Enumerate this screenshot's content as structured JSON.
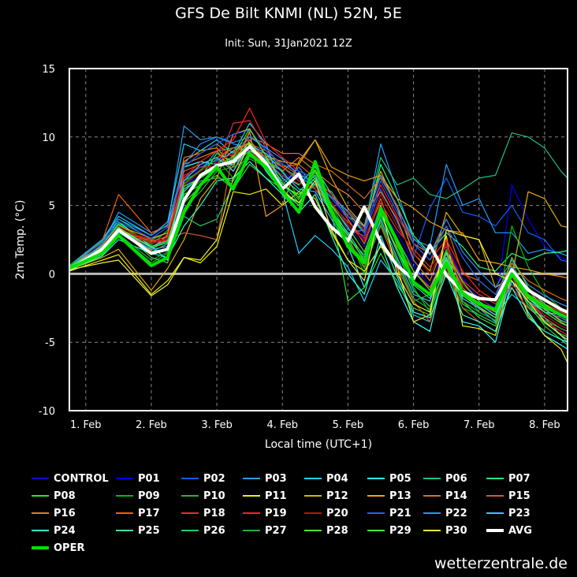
{
  "title": "GFS De Bilt KNMI (NL) 52N, 5E",
  "subtitle": "Init: Sun, 31Jan2021 12Z",
  "watermark": "wetterzentrale.de",
  "chart_data": {
    "type": "line",
    "xlabel": "Local time (UTC+1)",
    "ylabel": "2m Temp. (°C)",
    "ylim": [
      -10,
      15
    ],
    "yticks": [
      -10,
      -5,
      0,
      5,
      10,
      15
    ],
    "xlim": [
      0.75,
      8.35
    ],
    "xticks": [
      1,
      2,
      3,
      4,
      5,
      6,
      7,
      8
    ],
    "xtick_labels": [
      "1. Feb",
      "2. Feb",
      "3. Feb",
      "4. Feb",
      "5. Feb",
      "6. Feb",
      "7. Feb",
      "8. Feb"
    ],
    "grid": true,
    "legend_position": "bottom",
    "x": [
      0.75,
      1.25,
      1.5,
      2.0,
      2.25,
      2.5,
      2.75,
      3.0,
      3.25,
      3.5,
      3.75,
      4.0,
      4.25,
      4.5,
      4.75,
      5.0,
      5.25,
      5.5,
      5.75,
      6.0,
      6.25,
      6.5,
      6.75,
      7.0,
      7.25,
      7.5,
      7.75,
      8.0,
      8.25,
      8.35
    ],
    "series": [
      {
        "name": "CONTROL",
        "color": "#1010c0",
        "values": [
          0.4,
          1.5,
          3.2,
          1.8,
          2.5,
          6.5,
          7.2,
          7.5,
          8.5,
          10.2,
          9.0,
          7.5,
          6.5,
          7.2,
          5.0,
          3.5,
          2.0,
          5.0,
          2.5,
          0.5,
          -1.2,
          1.5,
          -0.8,
          -2.0,
          -3.2,
          -0.5,
          -2.2,
          -3.0,
          -3.8,
          -4.0
        ]
      },
      {
        "name": "P01",
        "color": "#0000ff",
        "values": [
          0.3,
          1.8,
          3.0,
          1.5,
          2.2,
          6.0,
          8.0,
          8.2,
          9.0,
          9.5,
          8.8,
          7.0,
          7.0,
          6.8,
          5.5,
          4.0,
          2.5,
          4.5,
          3.0,
          0.8,
          -1.0,
          2.2,
          -0.3,
          -1.8,
          -2.5,
          6.5,
          4.0,
          2.0,
          1.2,
          1.0
        ]
      },
      {
        "name": "P02",
        "color": "#1060ff",
        "values": [
          0.5,
          1.9,
          3.3,
          1.9,
          2.8,
          7.0,
          7.8,
          8.3,
          9.2,
          9.8,
          8.2,
          6.8,
          7.4,
          6.5,
          5.2,
          3.2,
          2.8,
          6.2,
          3.8,
          1.2,
          4.8,
          7.0,
          4.5,
          4.2,
          3.5,
          5.0,
          3.0,
          2.5,
          1.0,
          0.9
        ]
      },
      {
        "name": "P03",
        "color": "#20a0ff",
        "values": [
          0.2,
          2.2,
          4.5,
          3.0,
          3.5,
          10.8,
          9.8,
          10.0,
          9.5,
          9.2,
          8.5,
          6.5,
          7.8,
          6.2,
          4.5,
          3.0,
          3.2,
          9.5,
          6.0,
          2.5,
          2.0,
          8.0,
          5.0,
          5.5,
          3.0,
          3.0,
          1.5,
          1.8,
          1.5,
          1.3
        ]
      },
      {
        "name": "P04",
        "color": "#20d0ff",
        "values": [
          0.6,
          2.5,
          4.2,
          2.8,
          3.8,
          9.5,
          9.0,
          9.8,
          8.8,
          11.0,
          9.5,
          6.0,
          1.5,
          2.8,
          1.8,
          0.5,
          -2.0,
          1.0,
          -0.5,
          -3.0,
          -3.5,
          0.5,
          -1.5,
          -2.2,
          -3.0,
          -1.5,
          -2.5,
          -3.2,
          -4.5,
          -5.0
        ]
      },
      {
        "name": "P05",
        "color": "#30ffff",
        "values": [
          0.4,
          1.6,
          3.8,
          2.0,
          1.0,
          7.8,
          8.2,
          8.0,
          9.0,
          9.6,
          7.5,
          6.0,
          5.0,
          8.0,
          4.8,
          2.0,
          -1.0,
          2.2,
          -1.0,
          -3.5,
          -4.2,
          1.0,
          -3.5,
          -3.8,
          -5.0,
          -0.5,
          -2.8,
          -4.5,
          -5.2,
          -5.5
        ]
      },
      {
        "name": "P06",
        "color": "#20c080",
        "values": [
          0.3,
          2.0,
          4.0,
          2.5,
          3.0,
          6.8,
          7.5,
          9.0,
          9.2,
          9.0,
          8.8,
          7.8,
          7.0,
          6.5,
          6.0,
          4.2,
          3.5,
          8.5,
          6.5,
          7.0,
          5.8,
          5.5,
          6.2,
          7.0,
          7.2,
          10.3,
          10.0,
          9.2,
          7.5,
          7.0
        ]
      },
      {
        "name": "P07",
        "color": "#20ff80",
        "values": [
          0.5,
          2.1,
          3.6,
          2.2,
          2.6,
          6.2,
          7.0,
          8.8,
          8.2,
          9.2,
          8.0,
          7.2,
          6.5,
          7.8,
          5.8,
          4.5,
          3.0,
          8.0,
          5.5,
          2.8,
          1.5,
          3.0,
          2.0,
          0.5,
          0.2,
          1.5,
          1.0,
          1.5,
          1.6,
          1.7
        ]
      },
      {
        "name": "P08",
        "color": "#30e030",
        "values": [
          0.4,
          1.7,
          3.4,
          1.2,
          0.8,
          5.8,
          6.5,
          7.2,
          6.2,
          8.0,
          7.0,
          6.2,
          5.0,
          8.2,
          4.5,
          -2.0,
          -1.0,
          1.5,
          -0.8,
          -2.5,
          -3.0,
          1.2,
          -2.0,
          -3.2,
          -3.8,
          -0.2,
          -2.2,
          -3.8,
          -4.8,
          -5.2
        ]
      },
      {
        "name": "P09",
        "color": "#00c000",
        "values": [
          0.6,
          2.3,
          3.7,
          2.1,
          3.2,
          6.6,
          7.6,
          8.4,
          7.0,
          9.0,
          8.3,
          7.6,
          5.5,
          7.5,
          5.0,
          2.8,
          0.0,
          4.2,
          1.8,
          -1.0,
          -2.8,
          0.2,
          -2.5,
          -3.0,
          -3.6,
          3.5,
          0.5,
          -1.5,
          -2.5,
          -2.8
        ]
      },
      {
        "name": "P10",
        "color": "#30b030",
        "values": [
          0.3,
          1.4,
          2.8,
          0.8,
          1.5,
          5.5,
          6.8,
          7.0,
          6.8,
          8.6,
          7.8,
          6.4,
          5.8,
          7.0,
          4.2,
          2.2,
          1.0,
          3.8,
          0.8,
          -2.0,
          -1.5,
          1.8,
          -1.2,
          -2.8,
          -3.4,
          0.8,
          -1.6,
          -2.8,
          -3.2,
          -3.4
        ]
      },
      {
        "name": "P11",
        "color": "#f0f000",
        "values": [
          0.2,
          1.0,
          1.4,
          -1.5,
          -0.5,
          1.2,
          0.8,
          2.0,
          6.0,
          5.8,
          6.2,
          5.0,
          6.0,
          5.5,
          3.0,
          1.0,
          0.2,
          2.0,
          0.5,
          -3.5,
          -3.0,
          2.8,
          -3.8,
          -4.0,
          -4.5,
          0.0,
          -3.0,
          -4.5,
          -5.5,
          -6.5
        ]
      },
      {
        "name": "P12",
        "color": "#e0b000",
        "values": [
          0.3,
          1.2,
          1.8,
          -1.2,
          0.4,
          2.5,
          5.5,
          7.0,
          10.2,
          10.6,
          8.6,
          8.2,
          8.0,
          9.8,
          7.0,
          4.8,
          3.5,
          7.5,
          4.8,
          1.5,
          0.2,
          4.5,
          2.8,
          2.5,
          -1.0,
          -0.2,
          6.0,
          5.5,
          3.5,
          3.4
        ]
      },
      {
        "name": "P13",
        "color": "#f0a010",
        "values": [
          0.5,
          1.9,
          3.5,
          2.6,
          3.0,
          8.2,
          9.0,
          9.2,
          7.8,
          10.4,
          4.2,
          5.0,
          8.2,
          9.8,
          7.8,
          7.2,
          6.8,
          7.2,
          5.5,
          4.8,
          3.8,
          3.2,
          3.0,
          1.0,
          0.8,
          0.5,
          0.3,
          0.0,
          -0.2,
          -0.3
        ]
      },
      {
        "name": "P14",
        "color": "#e07010",
        "values": [
          0.4,
          1.8,
          3.1,
          2.4,
          2.7,
          8.5,
          8.8,
          9.5,
          8.5,
          10.0,
          9.5,
          8.8,
          8.8,
          8.0,
          7.5,
          6.5,
          5.5,
          7.0,
          5.0,
          2.2,
          1.5,
          3.5,
          0.0,
          -0.5,
          -1.5,
          0.8,
          -0.5,
          -1.2,
          -1.8,
          -2.0
        ]
      },
      {
        "name": "P15",
        "color": "#d06020",
        "values": [
          0.3,
          2.0,
          3.3,
          2.0,
          2.5,
          3.0,
          2.8,
          2.5,
          9.0,
          9.5,
          9.0,
          8.0,
          7.2,
          6.8,
          4.8,
          2.5,
          0.5,
          3.5,
          0.5,
          -2.0,
          -3.5,
          0.5,
          -2.5,
          -3.5,
          -4.2,
          0.5,
          -2.0,
          -3.2,
          -4.0,
          -4.2
        ]
      },
      {
        "name": "P16",
        "color": "#e08030",
        "values": [
          0.5,
          2.1,
          3.4,
          1.7,
          2.9,
          8.0,
          8.5,
          9.0,
          7.5,
          9.8,
          8.2,
          7.5,
          8.5,
          7.5,
          6.5,
          5.8,
          4.5,
          6.0,
          4.0,
          1.0,
          -0.5,
          2.5,
          -1.8,
          -2.5,
          -3.2,
          0.5,
          -1.2,
          -2.5,
          -3.5,
          -3.8
        ]
      },
      {
        "name": "P17",
        "color": "#f06010",
        "values": [
          0.4,
          2.4,
          5.8,
          3.0,
          3.5,
          7.5,
          8.0,
          8.5,
          9.2,
          9.5,
          8.5,
          7.8,
          8.0,
          7.0,
          5.8,
          4.0,
          2.2,
          5.5,
          2.0,
          0.2,
          -1.0,
          1.5,
          -1.0,
          -2.2,
          -2.8,
          0.0,
          -1.5,
          -2.2,
          -2.8,
          -3.0
        ]
      },
      {
        "name": "P18",
        "color": "#e03030",
        "values": [
          0.3,
          1.6,
          3.0,
          2.3,
          2.8,
          7.2,
          7.8,
          7.8,
          11.0,
          11.2,
          9.2,
          7.8,
          6.8,
          6.2,
          5.0,
          3.8,
          2.6,
          5.2,
          3.2,
          1.8,
          0.5,
          2.0,
          -0.5,
          -1.5,
          -2.2,
          -0.8,
          -1.8,
          -2.8,
          -3.2,
          -3.5
        ]
      },
      {
        "name": "P19",
        "color": "#ff2020",
        "values": [
          0.5,
          1.9,
          3.2,
          2.5,
          2.4,
          7.0,
          8.2,
          9.0,
          9.8,
          12.1,
          9.6,
          8.5,
          7.5,
          7.0,
          5.8,
          4.5,
          3.2,
          6.5,
          4.2,
          2.2,
          1.0,
          2.5,
          0.2,
          -1.2,
          -2.0,
          -1.0,
          -2.5,
          -3.5,
          -4.2,
          -4.5
        ]
      },
      {
        "name": "P20",
        "color": "#c01010",
        "values": [
          0.4,
          2.0,
          3.5,
          2.2,
          2.6,
          6.5,
          7.5,
          8.2,
          8.8,
          9.0,
          8.0,
          7.2,
          6.6,
          6.4,
          5.2,
          3.6,
          2.4,
          5.8,
          3.5,
          1.5,
          0.0,
          2.2,
          -0.8,
          -1.8,
          -2.6,
          -0.2,
          -2.0,
          -3.0,
          -3.8,
          -4.0
        ]
      },
      {
        "name": "P21",
        "color": "#2060ff",
        "values": [
          0.3,
          2.2,
          3.8,
          2.6,
          3.4,
          7.8,
          8.8,
          9.5,
          10.2,
          10.5,
          9.0,
          8.0,
          7.5,
          7.0,
          5.5,
          4.2,
          3.0,
          6.8,
          4.5,
          2.2,
          1.0,
          3.5,
          1.2,
          -0.5,
          -1.5,
          0.5,
          -1.2,
          -2.2,
          -3.2,
          -3.5
        ]
      },
      {
        "name": "P22",
        "color": "#3090ff",
        "values": [
          0.5,
          2.4,
          4.0,
          2.8,
          3.6,
          8.0,
          9.5,
          10.0,
          9.6,
          10.0,
          9.2,
          8.4,
          7.2,
          6.8,
          5.6,
          4.6,
          3.4,
          7.2,
          4.8,
          2.6,
          1.4,
          4.0,
          1.6,
          0.2,
          -1.0,
          1.0,
          -0.8,
          -1.6,
          -2.2,
          -2.4
        ]
      },
      {
        "name": "P23",
        "color": "#40c0ff",
        "values": [
          0.4,
          1.5,
          3.0,
          1.8,
          2.0,
          6.8,
          8.0,
          8.5,
          7.5,
          9.4,
          8.8,
          7.4,
          6.2,
          6.0,
          4.0,
          2.0,
          0.8,
          4.0,
          1.2,
          -1.5,
          -2.0,
          1.5,
          -1.8,
          -2.5,
          -3.5,
          -0.5,
          -2.0,
          -2.8,
          -3.0,
          -3.2
        ]
      },
      {
        "name": "P24",
        "color": "#30ffd0",
        "values": [
          0.3,
          1.3,
          2.5,
          1.5,
          1.2,
          3.5,
          5.0,
          6.8,
          7.0,
          8.2,
          7.0,
          5.8,
          4.5,
          5.8,
          2.8,
          0.0,
          -1.5,
          2.8,
          -0.2,
          -2.8,
          -3.2,
          0.0,
          -3.0,
          -3.5,
          -4.2,
          -1.0,
          -3.2,
          -4.2,
          -4.8,
          -5.0
        ]
      },
      {
        "name": "P25",
        "color": "#40e0a0",
        "values": [
          0.5,
          2.0,
          3.2,
          2.0,
          2.4,
          6.0,
          7.2,
          8.0,
          8.0,
          9.0,
          8.4,
          7.0,
          6.0,
          7.2,
          4.6,
          3.0,
          1.2,
          4.6,
          2.2,
          -0.8,
          -1.8,
          1.0,
          -1.5,
          -2.2,
          -3.0,
          0.0,
          -1.8,
          -2.6,
          -3.4,
          -3.6
        ]
      },
      {
        "name": "P26",
        "color": "#20d060",
        "values": [
          0.4,
          1.7,
          3.0,
          1.6,
          2.2,
          4.2,
          3.5,
          4.0,
          6.5,
          8.8,
          7.6,
          6.6,
          5.2,
          6.6,
          4.4,
          2.6,
          1.4,
          4.4,
          1.6,
          -1.2,
          -2.4,
          0.8,
          -2.2,
          -3.0,
          -3.6,
          0.2,
          -2.4,
          -3.6,
          -4.4,
          -4.6
        ]
      },
      {
        "name": "P27",
        "color": "#20b040",
        "values": [
          0.3,
          1.6,
          2.9,
          1.0,
          1.6,
          4.8,
          6.0,
          7.5,
          7.8,
          8.4,
          7.8,
          6.8,
          5.4,
          7.4,
          4.8,
          2.4,
          0.4,
          3.6,
          1.0,
          -1.8,
          -2.6,
          0.6,
          -2.0,
          -2.8,
          -3.4,
          0.4,
          -2.2,
          -3.4,
          -4.0,
          -4.2
        ]
      },
      {
        "name": "P28",
        "color": "#60e020",
        "values": [
          0.5,
          1.8,
          3.2,
          1.4,
          1.8,
          5.2,
          6.4,
          7.8,
          8.6,
          10.6,
          8.6,
          6.6,
          5.6,
          7.6,
          5.0,
          3.4,
          1.6,
          4.8,
          2.6,
          0.2,
          -1.2,
          1.6,
          -0.6,
          -2.0,
          -2.8,
          1.2,
          -1.0,
          -2.2,
          -3.0,
          -3.2
        ]
      },
      {
        "name": "P29",
        "color": "#40ff40",
        "values": [
          0.4,
          1.9,
          3.4,
          1.9,
          2.3,
          6.4,
          7.0,
          7.8,
          8.4,
          9.6,
          8.0,
          6.4,
          5.8,
          7.0,
          4.4,
          2.8,
          1.0,
          4.4,
          1.8,
          -0.6,
          -1.6,
          1.2,
          -1.6,
          -2.4,
          -3.2,
          0.0,
          -1.8,
          -2.8,
          -3.6,
          -3.8
        ]
      },
      {
        "name": "P30",
        "color": "#f0f040",
        "values": [
          0.3,
          0.8,
          1.0,
          -1.6,
          -0.8,
          1.2,
          1.0,
          2.5,
          7.0,
          9.5,
          7.8,
          6.0,
          5.2,
          6.8,
          3.2,
          1.0,
          -0.5,
          5.0,
          0.0,
          -2.2,
          -2.8,
          3.2,
          2.8,
          2.5,
          0.0,
          -0.5,
          -2.0,
          -3.5,
          -4.5,
          -4.8
        ]
      },
      {
        "name": "AVG",
        "color": "#ffffff",
        "bold": true,
        "values": [
          0.3,
          1.8,
          3.2,
          1.5,
          1.8,
          5.4,
          7.2,
          7.9,
          8.2,
          9.3,
          8.1,
          6.2,
          7.3,
          4.9,
          3.4,
          2.4,
          4.9,
          2.3,
          0.6,
          -0.4,
          2.1,
          -0.1,
          -1.3,
          -1.8,
          -1.9,
          0.3,
          -1.2,
          -1.9,
          -2.6,
          -2.8
        ]
      },
      {
        "name": "OPER",
        "color": "#00e000",
        "bold": true,
        "values": [
          0.4,
          1.5,
          2.8,
          0.6,
          1.2,
          4.5,
          6.5,
          7.8,
          6.2,
          8.8,
          7.8,
          6.0,
          4.5,
          8.2,
          4.6,
          2.0,
          0.8,
          4.8,
          2.4,
          -0.6,
          -1.5,
          0.8,
          -1.4,
          -2.2,
          -2.6,
          0.0,
          -1.6,
          -2.4,
          -3.0,
          -3.2
        ]
      }
    ]
  }
}
